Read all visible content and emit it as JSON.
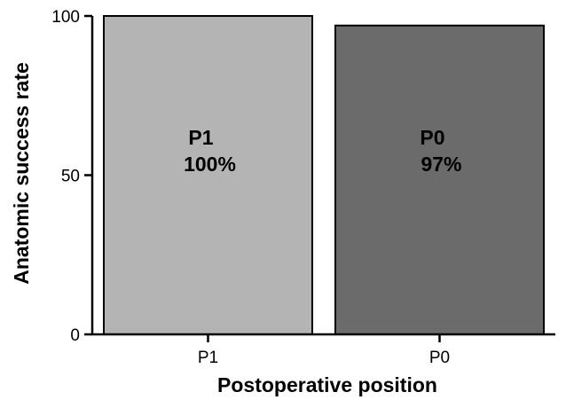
{
  "chart_data": {
    "type": "bar",
    "title": "",
    "xlabel": "Postoperative position",
    "ylabel": "Anatomic success rate",
    "ylim": [
      0,
      100
    ],
    "yticks": [
      0,
      50,
      100
    ],
    "categories": [
      "P1",
      "P0"
    ],
    "values": [
      100,
      97
    ],
    "bar_labels": [
      {
        "name": "P1",
        "value": "100%"
      },
      {
        "name": "P0",
        "value": "97%"
      }
    ],
    "colors": [
      "#b4b4b4",
      "#6b6b6b"
    ],
    "grid": false,
    "legend": "none"
  }
}
